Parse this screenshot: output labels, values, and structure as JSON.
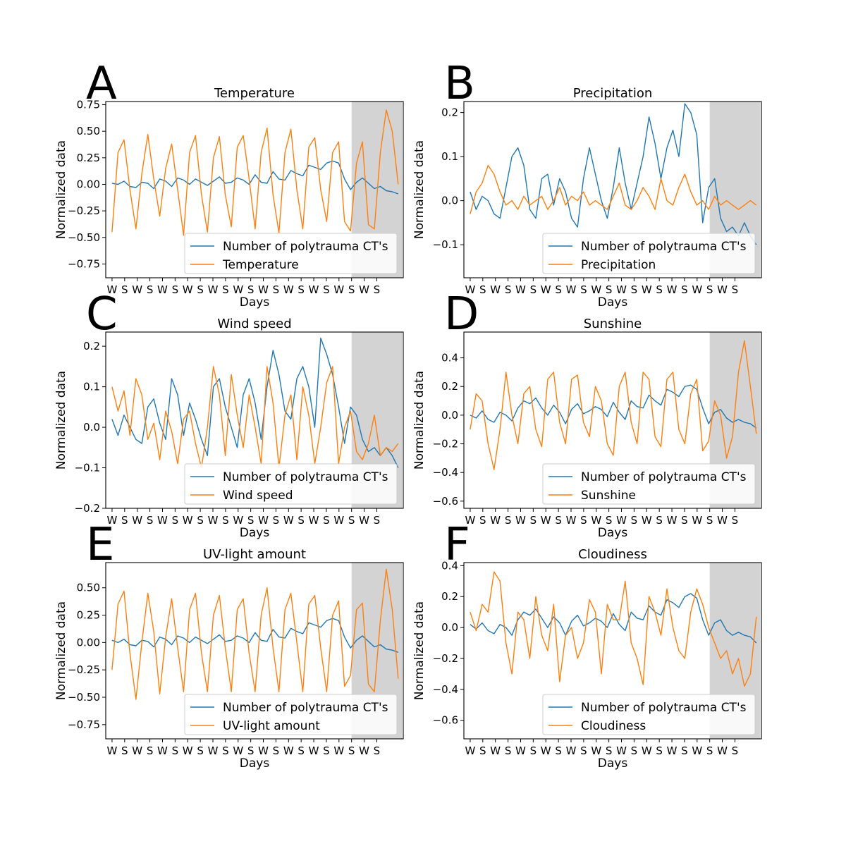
{
  "colors": {
    "ct": "#1f77b4",
    "weather": "#ff7f0e",
    "shade": "#d3d3d3"
  },
  "common": {
    "xlabel": "Days",
    "ylabel": "Normalized data",
    "x_tick_labels": [
      "W",
      "S",
      "W",
      "S",
      "W",
      "S",
      "W",
      "S",
      "W",
      "S",
      "W",
      "S",
      "W",
      "S",
      "W",
      "S",
      "W",
      "S",
      "W",
      "S",
      "W",
      "S"
    ],
    "ct_label": "Number of polytrauma CT's"
  },
  "chart_data": [
    {
      "type": "line",
      "letter": "A",
      "title": "Temperature",
      "ylim": [
        -0.88,
        0.78
      ],
      "yticks": [
        -0.75,
        -0.5,
        -0.25,
        0.0,
        0.25,
        0.5,
        0.75
      ],
      "ytick_labels": [
        "−0.75",
        "−0.50",
        "−0.25",
        "0.00",
        "0.25",
        "0.50",
        "0.75"
      ],
      "shaded_x": [
        19,
        23
      ],
      "series": [
        {
          "name": "Number of polytrauma CT's",
          "key": "ct",
          "values": [
            0.01,
            0.0,
            0.03,
            -0.02,
            -0.03,
            0.02,
            0.01,
            -0.04,
            0.05,
            0.03,
            -0.02,
            0.06,
            0.04,
            0.0,
            0.05,
            0.02,
            -0.01,
            0.03,
            0.07,
            0.01,
            0.02,
            0.06,
            0.04,
            0.0,
            0.09,
            0.02,
            0.01,
            0.12,
            0.05,
            0.04,
            0.13,
            0.1,
            0.08,
            0.18,
            0.16,
            0.14,
            0.2,
            0.22,
            0.2,
            0.05,
            -0.05,
            0.02,
            0.06,
            0.01,
            -0.04,
            -0.02,
            -0.06,
            -0.07,
            -0.09
          ]
        },
        {
          "name": "Temperature",
          "key": "weather",
          "values": [
            -0.45,
            0.3,
            0.42,
            -0.05,
            -0.42,
            0.1,
            0.47,
            0.05,
            -0.3,
            0.15,
            0.38,
            -0.05,
            -0.48,
            0.3,
            0.46,
            -0.1,
            -0.45,
            0.25,
            0.45,
            -0.1,
            -0.4,
            0.35,
            0.46,
            0.05,
            -0.42,
            0.3,
            0.53,
            -0.1,
            -0.46,
            0.3,
            0.52,
            -0.05,
            -0.42,
            0.35,
            0.44,
            -0.05,
            -0.35,
            0.3,
            0.4,
            -0.35,
            -0.44,
            0.2,
            0.4,
            -0.38,
            -0.42,
            0.3,
            0.7,
            0.5,
            0.0
          ]
        }
      ]
    },
    {
      "type": "line",
      "letter": "B",
      "title": "Precipitation",
      "ylim": [
        -0.175,
        0.225
      ],
      "yticks": [
        -0.1,
        0.0,
        0.1,
        0.2
      ],
      "ytick_labels": [
        "−0.1",
        "0.0",
        "0.1",
        "0.2"
      ],
      "shaded_x": [
        19,
        23
      ],
      "series": [
        {
          "name": "Number of polytrauma CT's",
          "key": "ct",
          "values": [
            0.02,
            -0.02,
            0.01,
            0.0,
            -0.03,
            -0.04,
            0.03,
            0.1,
            0.12,
            0.08,
            -0.02,
            -0.04,
            0.05,
            0.06,
            -0.01,
            0.05,
            0.02,
            -0.04,
            -0.06,
            0.05,
            0.12,
            0.06,
            0.0,
            -0.04,
            0.03,
            0.12,
            0.04,
            -0.02,
            0.04,
            0.1,
            0.19,
            0.13,
            0.05,
            0.12,
            0.16,
            0.1,
            0.22,
            0.2,
            0.15,
            -0.05,
            0.03,
            0.05,
            -0.04,
            -0.07,
            -0.06,
            -0.08,
            -0.05,
            -0.08,
            -0.1
          ]
        },
        {
          "name": "Precipitation",
          "key": "weather",
          "values": [
            -0.03,
            0.02,
            0.04,
            0.08,
            0.06,
            0.02,
            -0.01,
            0.0,
            -0.02,
            0.01,
            -0.01,
            0.0,
            0.01,
            -0.02,
            0.0,
            0.03,
            -0.01,
            0.01,
            0.0,
            0.02,
            -0.01,
            0.0,
            -0.01,
            -0.02,
            0.01,
            0.04,
            -0.01,
            -0.02,
            0.0,
            0.03,
            0.01,
            -0.02,
            0.05,
            0.0,
            -0.01,
            0.03,
            0.06,
            0.02,
            -0.01,
            0.0,
            -0.02,
            0.01,
            -0.01,
            0.0,
            -0.01,
            -0.02,
            -0.01,
            0.0,
            -0.01
          ]
        }
      ]
    },
    {
      "type": "line",
      "letter": "C",
      "title": "Wind speed",
      "ylim": [
        -0.2,
        0.235
      ],
      "yticks": [
        -0.2,
        -0.1,
        0.0,
        0.1,
        0.2
      ],
      "ytick_labels": [
        "−0.2",
        "−0.1",
        "0.0",
        "0.1",
        "0.2"
      ],
      "shaded_x": [
        19,
        23
      ],
      "series": [
        {
          "name": "Number of polytrauma CT's",
          "key": "ct",
          "values": [
            0.02,
            -0.02,
            0.03,
            0.0,
            -0.03,
            -0.04,
            0.05,
            0.07,
            0.01,
            -0.03,
            0.12,
            0.08,
            -0.02,
            0.06,
            0.02,
            -0.03,
            -0.07,
            0.1,
            0.12,
            0.05,
            0.0,
            -0.05,
            0.08,
            0.12,
            0.06,
            -0.03,
            0.1,
            0.19,
            0.13,
            0.04,
            0.02,
            0.12,
            0.15,
            0.1,
            0.0,
            0.22,
            0.18,
            0.13,
            0.05,
            -0.04,
            0.05,
            0.03,
            -0.03,
            -0.06,
            -0.05,
            -0.07,
            -0.05,
            -0.07,
            -0.1
          ]
        },
        {
          "name": "Wind speed",
          "key": "weather",
          "values": [
            0.1,
            0.04,
            0.09,
            -0.02,
            0.12,
            0.08,
            -0.03,
            0.01,
            -0.08,
            0.04,
            -0.01,
            -0.09,
            0.02,
            0.04,
            -0.04,
            -0.1,
            0.0,
            0.15,
            0.08,
            -0.07,
            0.13,
            0.03,
            -0.05,
            0.08,
            0.0,
            -0.09,
            0.15,
            0.06,
            -0.1,
            0.03,
            0.08,
            -0.08,
            0.1,
            0.03,
            -0.09,
            0.0,
            0.11,
            0.15,
            -0.09,
            0.0,
            0.04,
            -0.06,
            -0.08,
            -0.04,
            0.03,
            -0.07,
            -0.05,
            -0.06,
            -0.04
          ]
        }
      ]
    },
    {
      "type": "line",
      "letter": "D",
      "title": "Sunshine",
      "ylim": [
        -0.65,
        0.58
      ],
      "yticks": [
        -0.6,
        -0.4,
        -0.2,
        0.0,
        0.2,
        0.4
      ],
      "ytick_labels": [
        "−0.6",
        "−0.4",
        "−0.2",
        "0.0",
        "0.2",
        "0.4"
      ],
      "shaded_x": [
        19,
        23
      ],
      "series": [
        {
          "name": "Number of polytrauma CT's",
          "key": "ct",
          "values": [
            0.0,
            -0.02,
            0.03,
            -0.03,
            -0.05,
            0.02,
            0.0,
            -0.04,
            0.05,
            0.1,
            0.08,
            0.12,
            0.05,
            0.0,
            0.07,
            0.02,
            -0.06,
            0.04,
            0.08,
            0.01,
            0.03,
            0.06,
            0.04,
            -0.01,
            0.09,
            0.02,
            -0.03,
            0.1,
            0.06,
            0.05,
            0.14,
            0.1,
            0.07,
            0.18,
            0.16,
            0.13,
            0.2,
            0.21,
            0.18,
            0.05,
            -0.06,
            0.02,
            0.04,
            -0.02,
            -0.05,
            -0.03,
            -0.05,
            -0.06,
            -0.09
          ]
        },
        {
          "name": "Sunshine",
          "key": "weather",
          "values": [
            -0.1,
            0.15,
            0.1,
            -0.2,
            -0.38,
            -0.1,
            0.3,
            0.0,
            -0.2,
            0.15,
            0.2,
            -0.1,
            -0.22,
            0.25,
            0.3,
            -0.05,
            -0.2,
            0.25,
            0.28,
            -0.05,
            -0.15,
            0.2,
            0.1,
            -0.2,
            -0.28,
            0.2,
            0.3,
            -0.05,
            -0.2,
            0.3,
            0.25,
            -0.15,
            -0.22,
            0.25,
            0.3,
            -0.1,
            -0.2,
            0.15,
            0.25,
            -0.25,
            -0.18,
            0.1,
            0.0,
            -0.3,
            -0.15,
            0.3,
            0.52,
            0.2,
            -0.13
          ]
        }
      ]
    },
    {
      "type": "line",
      "letter": "E",
      "title": "UV-light amount",
      "ylim": [
        -0.88,
        0.73
      ],
      "yticks": [
        -0.75,
        -0.5,
        -0.25,
        0.0,
        0.25,
        0.5
      ],
      "ytick_labels": [
        "−0.75",
        "−0.50",
        "−0.25",
        "0.00",
        "0.25",
        "0.50"
      ],
      "shaded_x": [
        19,
        23
      ],
      "series": [
        {
          "name": "Number of polytrauma CT's",
          "key": "ct",
          "values": [
            0.02,
            0.0,
            0.03,
            -0.02,
            -0.03,
            0.02,
            0.01,
            -0.04,
            0.05,
            0.03,
            -0.02,
            0.06,
            0.04,
            0.0,
            0.05,
            0.02,
            -0.01,
            0.03,
            0.07,
            0.01,
            0.02,
            0.06,
            0.04,
            0.0,
            0.09,
            0.02,
            0.01,
            0.12,
            0.05,
            0.04,
            0.13,
            0.1,
            0.08,
            0.18,
            0.16,
            0.14,
            0.2,
            0.22,
            0.2,
            0.05,
            -0.05,
            0.02,
            0.06,
            0.01,
            -0.04,
            -0.02,
            -0.06,
            -0.07,
            -0.09
          ]
        },
        {
          "name": "UV-light amount",
          "key": "weather",
          "values": [
            -0.25,
            0.35,
            0.47,
            -0.1,
            -0.52,
            0.0,
            0.45,
            0.1,
            -0.47,
            0.05,
            0.4,
            -0.05,
            -0.45,
            0.3,
            0.45,
            -0.1,
            -0.45,
            0.25,
            0.43,
            -0.05,
            -0.45,
            0.3,
            0.4,
            -0.1,
            -0.45,
            0.25,
            0.5,
            -0.05,
            -0.45,
            0.3,
            0.45,
            0.0,
            -0.45,
            0.35,
            0.43,
            -0.05,
            -0.45,
            0.25,
            0.38,
            -0.4,
            -0.3,
            0.3,
            0.36,
            -0.38,
            -0.45,
            0.2,
            0.67,
            0.3,
            -0.33
          ]
        }
      ]
    },
    {
      "type": "line",
      "letter": "F",
      "title": "Cloudiness",
      "ylim": [
        -0.72,
        0.42
      ],
      "yticks": [
        -0.6,
        -0.4,
        -0.2,
        0.0,
        0.2,
        0.4
      ],
      "ytick_labels": [
        "−0.6",
        "−0.4",
        "−0.2",
        "0.0",
        "0.2",
        "0.4"
      ],
      "shaded_x": [
        19,
        23
      ],
      "series": [
        {
          "name": "Number of polytrauma CT's",
          "key": "ct",
          "values": [
            0.02,
            -0.01,
            0.03,
            -0.02,
            -0.04,
            0.02,
            0.0,
            -0.05,
            0.05,
            0.1,
            0.08,
            0.12,
            0.06,
            0.0,
            0.07,
            0.03,
            -0.05,
            0.04,
            0.08,
            0.01,
            0.03,
            0.06,
            0.04,
            0.0,
            0.09,
            0.02,
            -0.02,
            0.1,
            0.06,
            0.05,
            0.14,
            0.1,
            0.08,
            0.18,
            0.16,
            0.13,
            0.2,
            0.22,
            0.19,
            0.05,
            -0.05,
            0.03,
            0.05,
            -0.02,
            -0.05,
            -0.03,
            -0.05,
            -0.06,
            -0.1
          ]
        },
        {
          "name": "Cloudiness",
          "key": "weather",
          "values": [
            0.1,
            -0.02,
            0.15,
            0.1,
            0.36,
            0.3,
            -0.1,
            -0.3,
            0.1,
            0.05,
            -0.2,
            0.2,
            -0.05,
            -0.15,
            0.15,
            -0.35,
            -0.05,
            0.0,
            -0.2,
            -0.1,
            0.18,
            0.1,
            -0.3,
            0.15,
            0.05,
            0.05,
            0.3,
            -0.1,
            -0.2,
            -0.37,
            0.2,
            0.1,
            -0.05,
            0.25,
            0.0,
            -0.15,
            -0.2,
            0.1,
            0.25,
            0.15,
            0.0,
            -0.1,
            -0.2,
            -0.15,
            -0.3,
            -0.2,
            -0.38,
            -0.3,
            0.07
          ]
        }
      ]
    }
  ]
}
